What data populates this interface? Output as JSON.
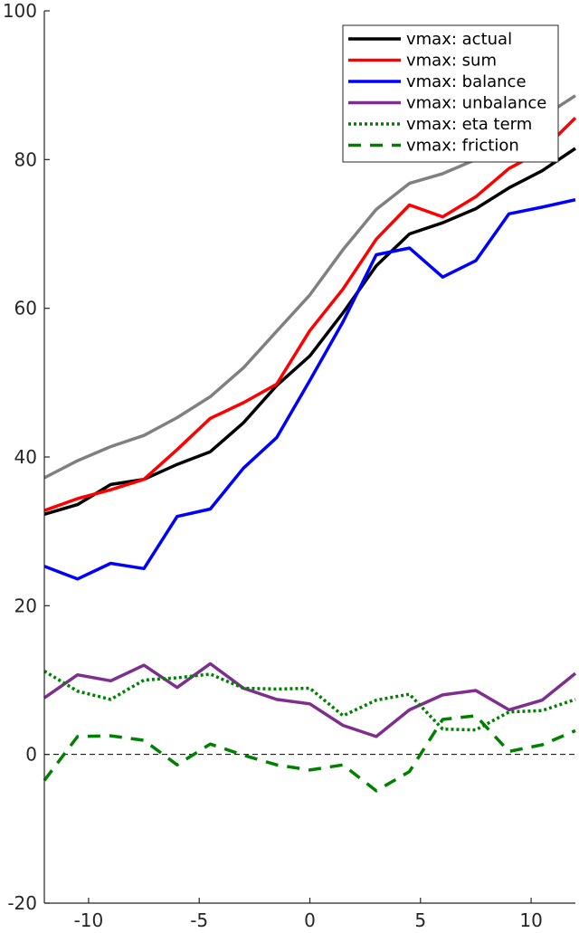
{
  "chart_data": {
    "type": "line",
    "title": "",
    "xlabel": "",
    "ylabel": "",
    "xlim": [
      -12,
      12
    ],
    "ylim": [
      -20,
      100
    ],
    "x_ticks": [
      -10,
      -5,
      0,
      5,
      10
    ],
    "y_ticks": [
      -20,
      0,
      20,
      40,
      60,
      80,
      100
    ],
    "x_tick_labels": [
      "-10",
      "-5",
      "0",
      "5",
      "10"
    ],
    "y_tick_labels": [
      "-20",
      "0",
      "20",
      "40",
      "60",
      "80",
      "100"
    ],
    "grid": false,
    "legend_position": "top-right",
    "x": [
      -12,
      -10.5,
      -9,
      -7.5,
      -6,
      -4.5,
      -3,
      -1.5,
      0,
      1.5,
      3,
      4.5,
      6,
      7.5,
      9,
      10.5,
      12
    ],
    "reference_line": {
      "y": 0,
      "color": "#000000",
      "style": "dashed"
    },
    "series": [
      {
        "name": "",
        "color": "#808080",
        "style": "solid",
        "values": [
          37.2,
          39.5,
          41.4,
          42.9,
          45.3,
          48.1,
          52.0,
          56.9,
          61.8,
          67.9,
          73.3,
          76.8,
          78.1,
          80.0,
          82.9,
          85.7,
          88.6
        ]
      },
      {
        "name": "vmax: actual",
        "color": "#000000",
        "style": "solid",
        "values": [
          32.3,
          33.6,
          36.3,
          37.0,
          39.0,
          40.7,
          44.6,
          49.6,
          53.6,
          59.4,
          65.7,
          70.0,
          71.5,
          73.4,
          76.2,
          78.5,
          81.5
        ]
      },
      {
        "name": "vmax: sum",
        "color": "#ff0000",
        "style": "solid",
        "values": [
          32.8,
          34.4,
          35.6,
          37.0,
          41.0,
          45.2,
          47.3,
          49.8,
          57.0,
          62.6,
          69.3,
          73.9,
          72.3,
          75.0,
          78.8,
          81.2,
          85.6
        ]
      },
      {
        "name": "vmax: balance",
        "color": "#0000ff",
        "style": "solid",
        "values": [
          25.3,
          23.6,
          25.7,
          25.0,
          32.0,
          33.0,
          38.5,
          42.6,
          50.3,
          58.2,
          67.2,
          68.1,
          64.2,
          66.4,
          72.7,
          73.6,
          74.6
        ]
      },
      {
        "name": "vmax: unbalance",
        "color": "#7e2f8e",
        "style": "solid",
        "values": [
          7.6,
          10.7,
          9.9,
          12.0,
          9.0,
          12.2,
          8.9,
          7.4,
          6.8,
          3.9,
          2.4,
          6.0,
          8.0,
          8.6,
          6.0,
          7.3,
          10.9
        ]
      },
      {
        "name": "vmax: eta term",
        "color": "#008000",
        "style": "dotted",
        "values": [
          11.2,
          8.5,
          7.4,
          10.0,
          10.3,
          10.8,
          8.9,
          8.8,
          8.9,
          5.2,
          7.3,
          8.1,
          3.4,
          3.3,
          5.7,
          5.9,
          7.4
        ]
      },
      {
        "name": "vmax: friction",
        "color": "#008000",
        "style": "dashed",
        "values": [
          -3.5,
          2.4,
          2.5,
          1.9,
          -1.4,
          1.4,
          -0.1,
          -1.4,
          -2.1,
          -1.4,
          -4.9,
          -2.3,
          4.7,
          5.2,
          0.4,
          1.3,
          3.2
        ]
      }
    ]
  }
}
